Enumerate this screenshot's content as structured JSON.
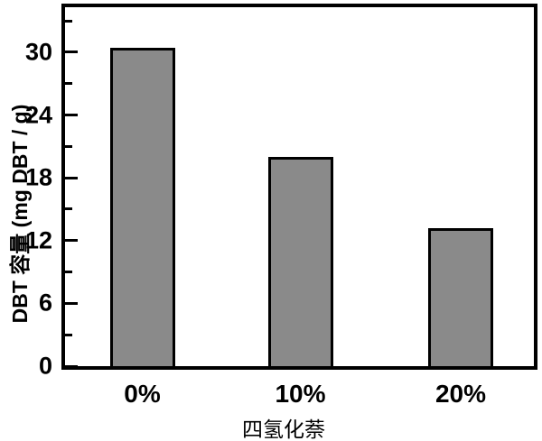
{
  "figure": {
    "background": "#ffffff",
    "axis_color": "#000000"
  },
  "chart_data": {
    "type": "bar",
    "title": "",
    "categories": [
      "0%",
      "10%",
      "20%"
    ],
    "values": [
      30.4,
      20.0,
      13.2
    ],
    "xlabel": "四氢化萘",
    "ylabel": "DBT 容量 (mg DBT / g)",
    "ylim": [
      0,
      34.3
    ],
    "yticks_major": [
      0,
      6,
      12,
      18,
      24,
      30
    ],
    "ytick_labels": [
      "0",
      "6",
      "12",
      "18",
      "24",
      "30"
    ],
    "yticks_minor": [
      3,
      9,
      15,
      21,
      27,
      33
    ],
    "grid": false,
    "legend": null,
    "bar_color": "#8a8a8a",
    "bar_edge_color": "#000000"
  }
}
